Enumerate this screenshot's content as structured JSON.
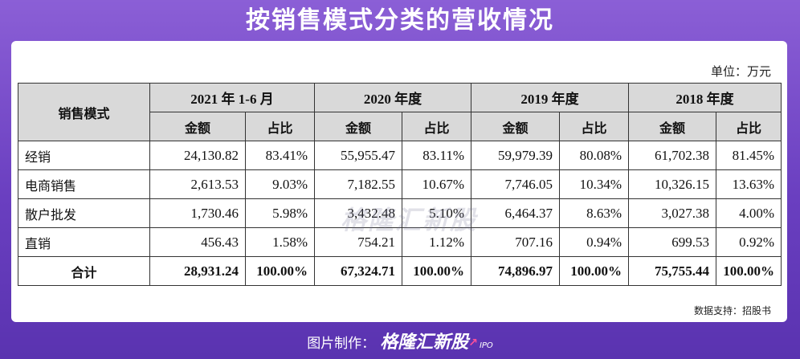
{
  "title": "按销售模式分类的营收情况",
  "unit": "单位：万元",
  "watermark": "格隆汇新股",
  "source": "数据支持：招股书",
  "footer": {
    "label": "图片制作：",
    "brand": "格隆汇新股",
    "ipo": "IPO"
  },
  "table": {
    "row_header": "销售模式",
    "periods": [
      "2021 年 1-6 月",
      "2020 年度",
      "2019 年度",
      "2018 年度"
    ],
    "sub_headers": [
      "金额",
      "占比"
    ],
    "rows": [
      {
        "category": "经销",
        "values": [
          "24,130.82",
          "83.41%",
          "55,955.47",
          "83.11%",
          "59,979.39",
          "80.08%",
          "61,702.38",
          "81.45%"
        ]
      },
      {
        "category": "电商销售",
        "values": [
          "2,613.53",
          "9.03%",
          "7,182.55",
          "10.67%",
          "7,746.05",
          "10.34%",
          "10,326.15",
          "13.63%"
        ]
      },
      {
        "category": "散户批发",
        "values": [
          "1,730.46",
          "5.98%",
          "3,432.48",
          "5.10%",
          "6,464.37",
          "8.63%",
          "3,027.38",
          "4.00%"
        ]
      },
      {
        "category": "直销",
        "values": [
          "456.43",
          "1.58%",
          "754.21",
          "1.12%",
          "707.16",
          "0.94%",
          "699.53",
          "0.92%"
        ]
      },
      {
        "category": "合计",
        "values": [
          "28,931.24",
          "100.00%",
          "67,324.71",
          "100.00%",
          "74,896.97",
          "100.00%",
          "75,755.44",
          "100.00%"
        ]
      }
    ]
  }
}
